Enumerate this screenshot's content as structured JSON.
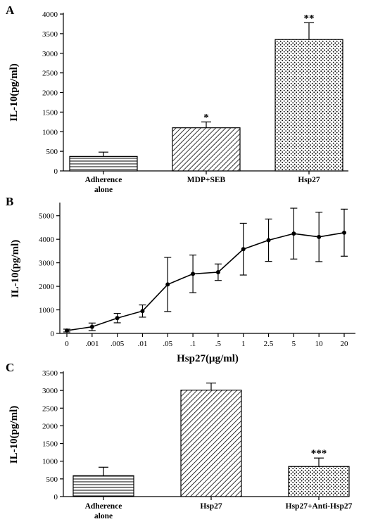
{
  "colors": {
    "ink": "#000000",
    "background": "#ffffff"
  },
  "chart_data": [
    {
      "panel": "A",
      "type": "bar",
      "ylabel": "IL-10(pg/ml)",
      "xlabel": "",
      "ylim": [
        0,
        4000
      ],
      "yticks": [
        0,
        500,
        1000,
        1500,
        2000,
        2500,
        3000,
        3500,
        4000
      ],
      "categories": [
        [
          "Adherence",
          "alone"
        ],
        [
          "MDP+SEB"
        ],
        [
          "Hsp27"
        ]
      ],
      "values": [
        370,
        1100,
        3350
      ],
      "errors": [
        110,
        150,
        430
      ],
      "patterns": [
        "hlines",
        "diag",
        "dots"
      ],
      "annotations": [
        "",
        "*",
        "**"
      ]
    },
    {
      "panel": "B",
      "type": "line",
      "ylabel": "IL-10(pg/ml)",
      "xlabel": "Hsp27(µg/ml)",
      "ylim": [
        0,
        5500
      ],
      "yticks": [
        0,
        1000,
        2000,
        3000,
        4000,
        5000
      ],
      "x": [
        "0",
        ".001",
        ".005",
        ".01",
        ".05",
        ".1",
        ".5",
        "1",
        "2.5",
        "5",
        "10",
        "20"
      ],
      "values": [
        120,
        280,
        650,
        950,
        2080,
        2530,
        2600,
        3580,
        3960,
        4240,
        4100,
        4280
      ],
      "errors": [
        60,
        160,
        200,
        260,
        1150,
        800,
        350,
        1100,
        900,
        1080,
        1050,
        1000
      ]
    },
    {
      "panel": "C",
      "type": "bar",
      "ylabel": "IL-10(pg/ml)",
      "xlabel": "",
      "ylim": [
        0,
        3500
      ],
      "yticks": [
        0,
        500,
        1000,
        1500,
        2000,
        2500,
        3000,
        3500
      ],
      "categories": [
        [
          "Adherence",
          "alone"
        ],
        [
          "Hsp27"
        ],
        [
          "Hsp27+Anti-Hsp27"
        ]
      ],
      "values": [
        590,
        3010,
        850
      ],
      "errors": [
        240,
        200,
        240
      ],
      "patterns": [
        "hlines",
        "diag",
        "dots"
      ],
      "annotations": [
        "",
        "",
        "***"
      ]
    }
  ]
}
